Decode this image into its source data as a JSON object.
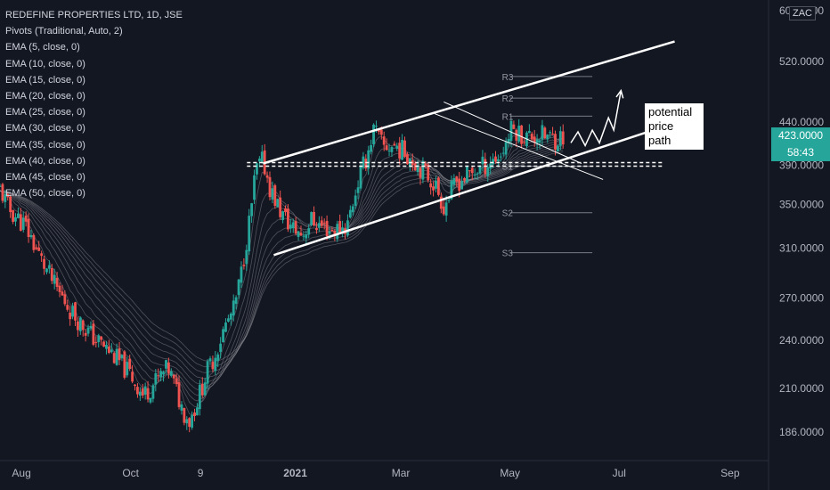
{
  "legend": {
    "title": "REDEFINE PROPERTIES LTD, 1D, JSE",
    "indicators": [
      "Pivots (Traditional, Auto, 2)",
      "EMA (5, close, 0)",
      "EMA (10, close, 0)",
      "EMA (15, close, 0)",
      "EMA (20, close, 0)",
      "EMA (25, close, 0)",
      "EMA (30, close, 0)",
      "EMA (35, close, 0)",
      "EMA (40, close, 0)",
      "EMA (45, close, 0)",
      "EMA (50, close, 0)"
    ]
  },
  "currency": "ZAC",
  "price_badge": {
    "last_price": "423.0000",
    "countdown": "58:43"
  },
  "annotation": [
    "potential",
    "price",
    "path"
  ],
  "colors": {
    "background": "#131722",
    "up": "#26a69a",
    "down": "#ef5350",
    "ema": "#9a9aa0",
    "trendline": "#ffffff",
    "axis_text": "#b2b5be"
  },
  "chart_data": {
    "type": "candlestick",
    "title": "REDEFINE PROPERTIES LTD, 1D, JSE",
    "y_scale": "log",
    "ylim": [
      174,
      602
    ],
    "y_ticks": [
      602,
      520,
      440,
      390,
      350,
      310,
      270,
      240,
      210,
      186
    ],
    "y_tick_labels": [
      "602.0000",
      "520.0000",
      "440.0000",
      "390.0000",
      "350.0000",
      "310.0000",
      "270.0000",
      "240.0000",
      "210.0000",
      "186.0000"
    ],
    "x_ticks": [
      "2020-08-01",
      "2020-10-01",
      "2020-11-09",
      "2021-01-01",
      "2021-03-01",
      "2021-05-01",
      "2021-07-01",
      "2021-09-01"
    ],
    "x_tick_labels": [
      "Aug",
      "Oct",
      "9",
      "2021",
      "Mar",
      "May",
      "Jul",
      "Sep"
    ],
    "xlim": [
      "2020-07-20",
      "2021-09-20"
    ],
    "price_path": [
      [
        "2020-07-20",
        365
      ],
      [
        "2020-07-25",
        345
      ],
      [
        "2020-08-03",
        330
      ],
      [
        "2020-08-12",
        300
      ],
      [
        "2020-08-20",
        278
      ],
      [
        "2020-08-30",
        258
      ],
      [
        "2020-09-10",
        242
      ],
      [
        "2020-09-20",
        232
      ],
      [
        "2020-10-01",
        218
      ],
      [
        "2020-10-08",
        206
      ],
      [
        "2020-10-15",
        214
      ],
      [
        "2020-10-22",
        222
      ],
      [
        "2020-10-30",
        198
      ],
      [
        "2020-11-03",
        192
      ],
      [
        "2020-11-08",
        205
      ],
      [
        "2020-11-12",
        218
      ],
      [
        "2020-11-17",
        230
      ],
      [
        "2020-11-23",
        250
      ],
      [
        "2020-11-28",
        262
      ],
      [
        "2020-12-02",
        290
      ],
      [
        "2020-12-07",
        340
      ],
      [
        "2020-12-10",
        385
      ],
      [
        "2020-12-14",
        395
      ],
      [
        "2020-12-18",
        365
      ],
      [
        "2020-12-24",
        342
      ],
      [
        "2020-12-30",
        328
      ],
      [
        "2021-01-05",
        322
      ],
      [
        "2021-01-10",
        335
      ],
      [
        "2021-01-15",
        330
      ],
      [
        "2021-01-22",
        325
      ],
      [
        "2021-01-30",
        330
      ],
      [
        "2021-02-05",
        372
      ],
      [
        "2021-02-10",
        400
      ],
      [
        "2021-02-14",
        432
      ],
      [
        "2021-02-19",
        410
      ],
      [
        "2021-02-26",
        412
      ],
      [
        "2021-03-05",
        402
      ],
      [
        "2021-03-12",
        388
      ],
      [
        "2021-03-20",
        370
      ],
      [
        "2021-03-25",
        348
      ],
      [
        "2021-04-01",
        372
      ],
      [
        "2021-04-10",
        382
      ],
      [
        "2021-04-18",
        392
      ],
      [
        "2021-04-26",
        402
      ],
      [
        "2021-05-02",
        432
      ],
      [
        "2021-05-10",
        422
      ],
      [
        "2021-05-18",
        424
      ],
      [
        "2021-05-26",
        420
      ],
      [
        "2021-06-01",
        423
      ]
    ],
    "ema_periods": [
      5,
      10,
      15,
      20,
      25,
      30,
      35,
      40,
      45,
      50
    ],
    "pivots": {
      "R3": 499,
      "R2": 470,
      "R1": 447,
      "S1": 389,
      "S2": 342,
      "S3": 306
    },
    "pivot_range": [
      "2021-05-01",
      "2021-06-16"
    ],
    "support_level": 391,
    "support_range": [
      "2020-12-05",
      "2021-07-25"
    ],
    "channel_upper": [
      [
        "2020-12-14",
        392
      ],
      [
        "2021-08-01",
        550
      ]
    ],
    "channel_lower": [
      [
        "2020-12-20",
        304
      ],
      [
        "2021-08-10",
        445
      ]
    ],
    "inner_upper": [
      [
        "2021-03-25",
        465
      ],
      [
        "2021-06-10",
        392
      ]
    ],
    "inner_lower": [
      [
        "2021-03-20",
        450
      ],
      [
        "2021-06-22",
        375
      ]
    ],
    "projection": [
      [
        "2021-06-04",
        415
      ],
      [
        "2021-06-08",
        428
      ],
      [
        "2021-06-12",
        412
      ],
      [
        "2021-06-16",
        430
      ],
      [
        "2021-06-20",
        415
      ],
      [
        "2021-06-25",
        445
      ],
      [
        "2021-06-28",
        430
      ],
      [
        "2021-07-02",
        480
      ]
    ],
    "last_price": 423
  }
}
